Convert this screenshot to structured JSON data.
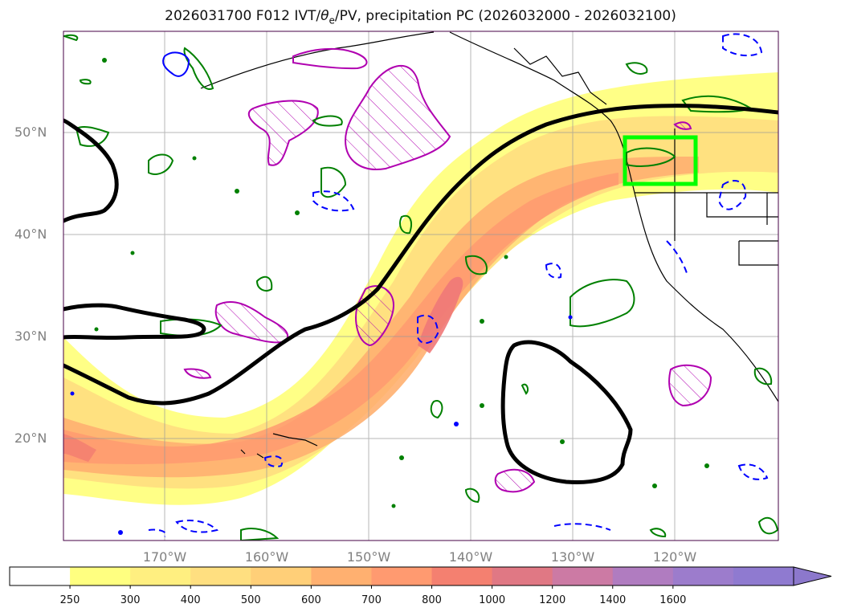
{
  "title": {
    "prefix": "2026031700 F012 IVT/",
    "theta": "θ",
    "sub": "e",
    "suffix": "/PV, precipitation PC (2026032000 - 2026032100)"
  },
  "map": {
    "lat_labels": [
      "50°N",
      "40°N",
      "30°N",
      "20°N"
    ],
    "lon_labels": [
      "170°W",
      "160°W",
      "150°W",
      "140°W",
      "130°W",
      "120°W"
    ],
    "highlight_box_color": "#00ff00",
    "ivt_fill_colors": [
      "#ffff66",
      "#fff066",
      "#ffe070",
      "#ffd070",
      "#ffb46e",
      "#ff9a70",
      "#f48070",
      "#e07080",
      "#cc70a0",
      "#b070c0",
      "#9a7acc"
    ],
    "contour_colors": {
      "theta_e": "#000000",
      "pv_positive": "#008000",
      "pv_negative": "#0000ff",
      "precip": "#b000b0"
    }
  },
  "colorbar": {
    "ticks": [
      "250",
      "300",
      "400",
      "500",
      "600",
      "700",
      "800",
      "1000",
      "1200",
      "1400",
      "1600"
    ],
    "colors": [
      "#ffffff",
      "#ffff80",
      "#ffef80",
      "#ffdf80",
      "#ffcf78",
      "#ffb070",
      "#ff9a70",
      "#f48070",
      "#e07884",
      "#cc7aa4",
      "#b07cc0",
      "#9c7ccc",
      "#8f7ad0"
    ],
    "extend": "max"
  }
}
